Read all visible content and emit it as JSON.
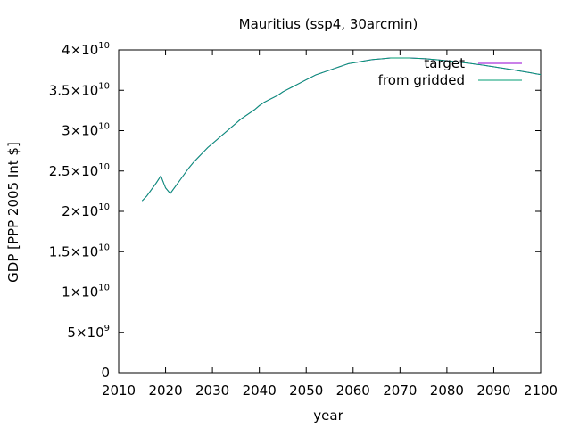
{
  "chart_data": {
    "type": "line",
    "title": "Mauritius (ssp4, 30arcmin)",
    "xlabel": "year",
    "ylabel": "GDP [PPP 2005 Int $]",
    "xlim": [
      2010,
      2100
    ],
    "ylim": [
      0,
      40000000000
    ],
    "grid": false,
    "legend_position": "top-right",
    "x_ticks": [
      2010,
      2020,
      2030,
      2040,
      2050,
      2060,
      2070,
      2080,
      2090,
      2100
    ],
    "y_ticks": [
      {
        "value": 0,
        "mantissa": "0",
        "exponent": ""
      },
      {
        "value": 5000000000,
        "mantissa": "5×10",
        "exponent": "9"
      },
      {
        "value": 10000000000,
        "mantissa": "1×10",
        "exponent": "10"
      },
      {
        "value": 15000000000,
        "mantissa": "1.5×10",
        "exponent": "10"
      },
      {
        "value": 20000000000,
        "mantissa": "2×10",
        "exponent": "10"
      },
      {
        "value": 25000000000,
        "mantissa": "2.5×10",
        "exponent": "10"
      },
      {
        "value": 30000000000,
        "mantissa": "3×10",
        "exponent": "10"
      },
      {
        "value": 35000000000,
        "mantissa": "3.5×10",
        "exponent": "10"
      },
      {
        "value": 40000000000,
        "mantissa": "4×10",
        "exponent": "10"
      }
    ],
    "x": [
      2015,
      2016,
      2017,
      2018,
      2019,
      2020,
      2021,
      2022,
      2023,
      2024,
      2025,
      2026,
      2027,
      2028,
      2029,
      2030,
      2031,
      2032,
      2033,
      2034,
      2035,
      2036,
      2037,
      2038,
      2039,
      2040,
      2041,
      2042,
      2043,
      2044,
      2045,
      2046,
      2047,
      2048,
      2049,
      2050,
      2051,
      2052,
      2053,
      2054,
      2055,
      2056,
      2057,
      2058,
      2059,
      2060,
      2061,
      2062,
      2063,
      2064,
      2065,
      2066,
      2067,
      2068,
      2069,
      2070,
      2071,
      2072,
      2073,
      2074,
      2075,
      2076,
      2077,
      2078,
      2079,
      2080,
      2081,
      2082,
      2083,
      2084,
      2085,
      2086,
      2087,
      2088,
      2089,
      2090,
      2091,
      2092,
      2093,
      2094,
      2095,
      2096,
      2097,
      2098,
      2099,
      2100
    ],
    "series": [
      {
        "name": "target",
        "color": "#9400d3",
        "values": [
          21300000000,
          21900000000,
          22700000000,
          23500000000,
          24400000000,
          22900000000,
          22200000000,
          23000000000,
          23800000000,
          24600000000,
          25400000000,
          26100000000,
          26700000000,
          27300000000,
          27900000000,
          28400000000,
          28900000000,
          29400000000,
          29900000000,
          30400000000,
          30900000000,
          31400000000,
          31800000000,
          32200000000,
          32600000000,
          33100000000,
          33500000000,
          33800000000,
          34100000000,
          34400000000,
          34800000000,
          35100000000,
          35400000000,
          35700000000,
          36000000000,
          36300000000,
          36600000000,
          36900000000,
          37100000000,
          37300000000,
          37500000000,
          37700000000,
          37900000000,
          38100000000,
          38300000000,
          38400000000,
          38500000000,
          38600000000,
          38700000000,
          38800000000,
          38850000000,
          38900000000,
          38950000000,
          39000000000,
          39000000000,
          39000000000,
          39000000000,
          39000000000,
          38980000000,
          38950000000,
          38920000000,
          38880000000,
          38830000000,
          38780000000,
          38720000000,
          38660000000,
          38600000000,
          38540000000,
          38470000000,
          38400000000,
          38330000000,
          38250000000,
          38170000000,
          38090000000,
          38000000000,
          37910000000,
          37820000000,
          37730000000,
          37640000000,
          37550000000,
          37450000000,
          37350000000,
          37250000000,
          37150000000,
          37050000000,
          36950000000
        ]
      },
      {
        "name": "from gridded",
        "color": "#009e73",
        "values": [
          21300000000,
          21900000000,
          22700000000,
          23500000000,
          24400000000,
          22900000000,
          22200000000,
          23000000000,
          23800000000,
          24600000000,
          25400000000,
          26100000000,
          26700000000,
          27300000000,
          27900000000,
          28400000000,
          28900000000,
          29400000000,
          29900000000,
          30400000000,
          30900000000,
          31400000000,
          31800000000,
          32200000000,
          32600000000,
          33100000000,
          33500000000,
          33800000000,
          34100000000,
          34400000000,
          34800000000,
          35100000000,
          35400000000,
          35700000000,
          36000000000,
          36300000000,
          36600000000,
          36900000000,
          37100000000,
          37300000000,
          37500000000,
          37700000000,
          37900000000,
          38100000000,
          38300000000,
          38400000000,
          38500000000,
          38600000000,
          38700000000,
          38800000000,
          38850000000,
          38900000000,
          38950000000,
          39000000000,
          39000000000,
          39000000000,
          39000000000,
          39000000000,
          38980000000,
          38950000000,
          38920000000,
          38880000000,
          38830000000,
          38780000000,
          38720000000,
          38660000000,
          38600000000,
          38540000000,
          38470000000,
          38400000000,
          38330000000,
          38250000000,
          38170000000,
          38090000000,
          38000000000,
          37910000000,
          37820000000,
          37730000000,
          37640000000,
          37550000000,
          37450000000,
          37350000000,
          37250000000,
          37150000000,
          37050000000,
          36950000000
        ]
      }
    ]
  }
}
